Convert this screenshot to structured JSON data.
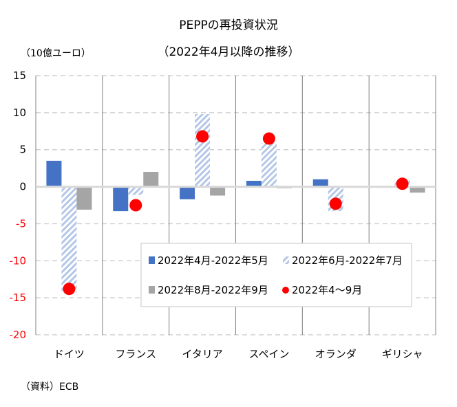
{
  "chart_data": {
    "type": "bar",
    "title": [
      "PEPPの再投資状況",
      "（2022年4月以降の推移）"
    ],
    "ylabel": "（10億ユーロ）",
    "xlabel": "",
    "source": "（資料）ECB",
    "ylim": [
      -20,
      15
    ],
    "yticks": [
      15,
      10,
      5,
      0,
      -5,
      -10,
      -15,
      -20
    ],
    "ytick_labels": [
      "15",
      "10",
      "5",
      "0",
      "-5",
      "-10",
      "-15",
      "-20"
    ],
    "negative_tick_color": "#ff0000",
    "grid": true,
    "legend_position": "lower-right inside plot",
    "categories": [
      "ドイツ",
      "フランス",
      "イタリア",
      "スペイン",
      "オランダ",
      "ギリシャ"
    ],
    "series": [
      {
        "name": "2022年4月-2022年5月",
        "type": "bar",
        "style": "solid",
        "color": "#4472c4",
        "values": [
          3.5,
          -3.3,
          -1.7,
          0.8,
          1.0,
          0.1
        ]
      },
      {
        "name": "2022年6月-2022年7月",
        "type": "bar",
        "style": "hatched",
        "color": "#b4c7e7",
        "values": [
          -14.3,
          -1.1,
          9.8,
          5.9,
          -3.3,
          1.0
        ]
      },
      {
        "name": "2022年8月-2022年9月",
        "type": "bar",
        "style": "solid",
        "color": "#a5a5a5",
        "values": [
          -3.1,
          2.0,
          -1.2,
          -0.2,
          0.1,
          -0.8
        ]
      },
      {
        "name": "2022年4～9月",
        "type": "marker",
        "style": "circle",
        "color": "#ff0000",
        "values": [
          -13.8,
          -2.5,
          6.8,
          6.5,
          -2.3,
          0.4
        ]
      }
    ]
  }
}
